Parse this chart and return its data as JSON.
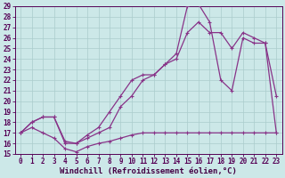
{
  "xlabel": "Windchill (Refroidissement éolien,°C)",
  "background_color": "#cce8e8",
  "grid_color": "#aacccc",
  "line_color": "#883388",
  "xlim": [
    -0.5,
    23.5
  ],
  "ylim": [
    15,
    29
  ],
  "xticks": [
    0,
    1,
    2,
    3,
    4,
    5,
    6,
    7,
    8,
    9,
    10,
    11,
    12,
    13,
    14,
    15,
    16,
    17,
    18,
    19,
    20,
    21,
    22,
    23
  ],
  "yticks": [
    15,
    16,
    17,
    18,
    19,
    20,
    21,
    22,
    23,
    24,
    25,
    26,
    27,
    28,
    29
  ],
  "line1_x": [
    0,
    1,
    2,
    3,
    4,
    5,
    6,
    7,
    8,
    9,
    10,
    11,
    12,
    13,
    14,
    15,
    16,
    17,
    18,
    19,
    20,
    21,
    22,
    23
  ],
  "line1_y": [
    17.0,
    17.5,
    17.0,
    16.5,
    15.5,
    15.2,
    15.7,
    16.0,
    16.2,
    16.5,
    16.8,
    17.0,
    17.0,
    17.0,
    17.0,
    17.0,
    17.0,
    17.0,
    17.0,
    17.0,
    17.0,
    17.0,
    17.0,
    17.0
  ],
  "line2_x": [
    0,
    1,
    2,
    3,
    4,
    5,
    6,
    7,
    8,
    9,
    10,
    11,
    12,
    13,
    14,
    15,
    16,
    17,
    18,
    19,
    20,
    21,
    22,
    23
  ],
  "line2_y": [
    17.0,
    18.0,
    18.5,
    18.5,
    16.2,
    16.0,
    16.8,
    17.5,
    19.0,
    20.5,
    22.0,
    22.5,
    22.5,
    23.5,
    24.0,
    26.5,
    27.5,
    26.5,
    26.5,
    25.0,
    26.5,
    26.0,
    25.5,
    20.5
  ],
  "line3_x": [
    0,
    1,
    2,
    3,
    4,
    5,
    6,
    7,
    8,
    9,
    10,
    11,
    12,
    13,
    14,
    15,
    16,
    17,
    18,
    19,
    20,
    21,
    22,
    23
  ],
  "line3_y": [
    17.0,
    18.0,
    18.5,
    18.5,
    16.0,
    16.0,
    16.5,
    17.0,
    17.5,
    19.5,
    20.5,
    22.0,
    22.5,
    23.5,
    24.5,
    29.0,
    29.2,
    27.5,
    22.0,
    21.0,
    26.0,
    25.5,
    25.5,
    17.0
  ],
  "tick_fontsize": 5.5,
  "xlabel_fontsize": 6.5,
  "marker": "+",
  "markersize": 3.5,
  "linewidth": 0.9
}
